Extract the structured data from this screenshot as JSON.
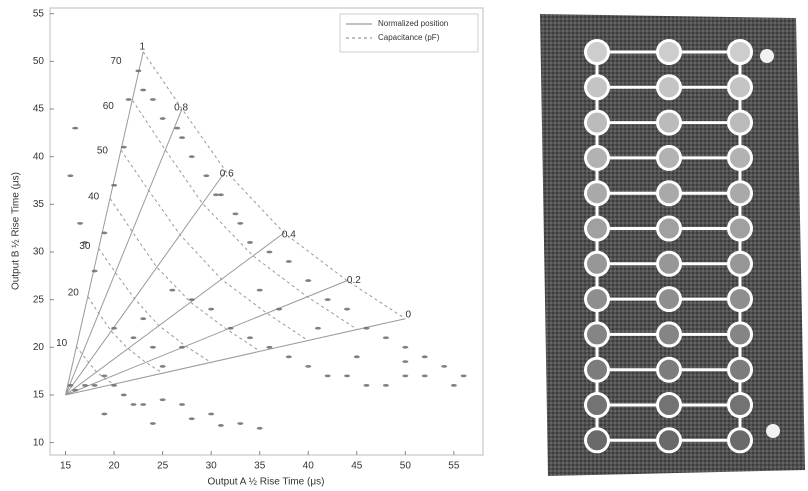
{
  "chart_data": {
    "type": "scatter",
    "x_label": "Output A ½ Rise Time (μs)",
    "y_label": "Output B ½ Rise Time (μs)",
    "xlim": [
      13.4,
      58
    ],
    "ylim": [
      8.7,
      55.6
    ],
    "xticks": [
      15,
      20,
      25,
      30,
      35,
      40,
      45,
      50,
      55
    ],
    "yticks": [
      10,
      15,
      20,
      25,
      30,
      35,
      40,
      45,
      50,
      55
    ],
    "legend": "upper right",
    "series": [
      {
        "name": "Normalized position",
        "color": "#9a9a9a",
        "mode": "lines",
        "x": [
          15,
          23,
          null,
          15,
          27,
          null,
          15,
          31.5,
          null,
          15,
          37.5,
          null,
          15,
          44,
          null,
          15,
          50
        ],
        "values": [
          15,
          51,
          null,
          15,
          45,
          null,
          15,
          38.5,
          null,
          15,
          32,
          null,
          15,
          27,
          null,
          15,
          23
        ]
      },
      {
        "name": "Capacitance (pF)",
        "color": "#9a9a9a",
        "mode": "lines",
        "dash": true,
        "x": [
          16.1,
          16.7,
          17.4,
          18.2,
          19.1,
          20,
          null,
          17.3,
          18.4,
          19.7,
          21.4,
          23.3,
          25,
          null,
          18.4,
          20.1,
          22.1,
          24.6,
          27.4,
          30,
          null,
          19.6,
          21.9,
          24.4,
          27.9,
          31.6,
          35,
          null,
          20.7,
          23.6,
          26.8,
          31.1,
          35.7,
          40,
          null,
          21.9,
          25.3,
          29.1,
          34.3,
          39.9,
          45,
          null,
          23,
          27,
          31.5,
          37.5,
          44,
          50
        ],
        "values": [
          20.1,
          19.3,
          18.4,
          17.4,
          16.7,
          16.1,
          null,
          25.3,
          23.6,
          21.7,
          19.9,
          18.4,
          17.3,
          null,
          30.4,
          27.9,
          25.1,
          22.3,
          20.1,
          18.4,
          null,
          35.6,
          32.1,
          28.4,
          24.7,
          21.9,
          19.6,
          null,
          40.7,
          36.4,
          31.8,
          27.1,
          23.6,
          20.7,
          null,
          45.9,
          40.7,
          35.1,
          29.6,
          25.3,
          21.9,
          null,
          51,
          45,
          38.5,
          32,
          27,
          23
        ]
      },
      {
        "color": "#6a6a6a",
        "mode": "markers",
        "x": [
          16,
          15.5,
          16.5,
          17,
          18,
          19,
          20,
          21,
          21.5,
          22.5,
          23,
          24,
          25,
          26.5,
          27,
          28,
          29.5,
          30.5,
          31,
          32.5,
          33,
          34,
          36,
          38,
          40,
          42,
          44,
          46,
          48,
          50,
          52,
          54,
          56,
          15.5,
          16,
          17,
          18,
          19,
          20,
          21,
          22,
          23,
          25,
          27,
          30,
          33,
          35,
          20,
          22,
          24,
          26,
          28,
          30,
          32,
          34,
          36,
          38,
          40,
          42,
          44,
          46,
          48,
          50,
          52,
          55,
          19,
          24,
          28,
          31,
          27,
          25,
          23,
          35,
          37,
          41,
          45,
          50
        ],
        "values": [
          43,
          38,
          33,
          31,
          28,
          32,
          37,
          41,
          46,
          49,
          47,
          46,
          44,
          43,
          42,
          40,
          38,
          36,
          36,
          34,
          33,
          31,
          30,
          29,
          27,
          25,
          24,
          22,
          21,
          20,
          19,
          18,
          17,
          16,
          15.5,
          16,
          16,
          17,
          16,
          15,
          14,
          14,
          14.5,
          14,
          13,
          12,
          11.5,
          22,
          21,
          20,
          26,
          25,
          24,
          22,
          21,
          20,
          19,
          18,
          17,
          17,
          16,
          16,
          17,
          17,
          16,
          13,
          12,
          12.5,
          11.8,
          20,
          18,
          23,
          26,
          24,
          22,
          19,
          18.5
        ]
      }
    ],
    "annotations": [
      {
        "text": "70",
        "x": 20.2,
        "y": 50
      },
      {
        "text": "60",
        "x": 19.4,
        "y": 45.3
      },
      {
        "text": "50",
        "x": 18.8,
        "y": 40.6
      },
      {
        "text": "40",
        "x": 17.9,
        "y": 35.8
      },
      {
        "text": "30",
        "x": 17,
        "y": 30.6
      },
      {
        "text": "20",
        "x": 15.8,
        "y": 25.7
      },
      {
        "text": "10",
        "x": 14.6,
        "y": 20.4
      },
      {
        "text": "1",
        "x": 22.9,
        "y": 51.5
      },
      {
        "text": "0.8",
        "x": 26.9,
        "y": 45.1
      },
      {
        "text": "0.6",
        "x": 31.6,
        "y": 38.2
      },
      {
        "text": "0.4",
        "x": 38,
        "y": 31.8
      },
      {
        "text": "0.2",
        "x": 44.7,
        "y": 27
      },
      {
        "text": "0",
        "x": 50.3,
        "y": 23.4
      }
    ]
  }
}
